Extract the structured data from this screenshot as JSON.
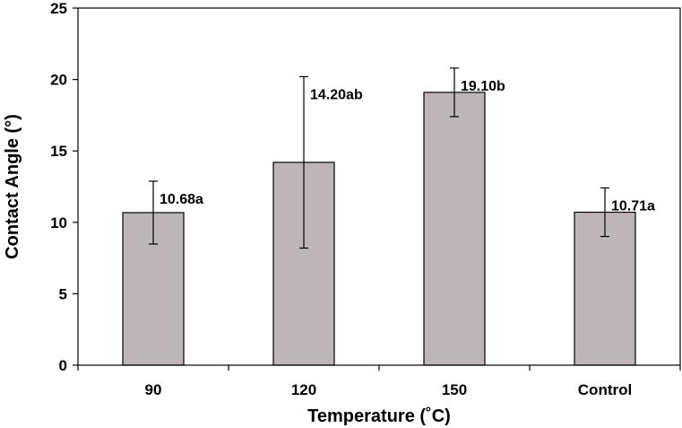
{
  "chart_data": {
    "type": "bar",
    "categories": [
      "90",
      "120",
      "150",
      "Control"
    ],
    "values": [
      10.68,
      14.2,
      19.1,
      10.71
    ],
    "errors": [
      2.2,
      6.0,
      1.7,
      1.7
    ],
    "data_labels": [
      "10.68a",
      "14.20ab",
      "19.10b",
      "10.71a"
    ],
    "xlabel": "Temperature (˚C)",
    "ylabel": "Contact Angle (°)",
    "ylim": [
      0,
      25
    ],
    "yticks": [
      0,
      5,
      10,
      15,
      20,
      25
    ],
    "grid": false,
    "legend": "none",
    "bar_color": "#bcb6b8",
    "bar_edge_color": "#000000"
  }
}
